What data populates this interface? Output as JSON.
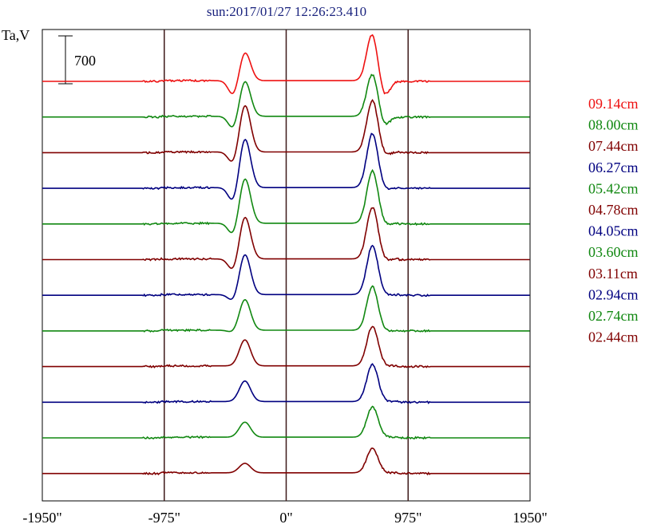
{
  "chart_data": {
    "type": "line",
    "title": "sun:2017/01/27 12:26:23.410",
    "ylabel": "Ta,V",
    "xlabel": "",
    "xlim": [
      -1950,
      1950
    ],
    "x_ticks": [
      -1950,
      -975,
      0,
      975,
      1950
    ],
    "x_tick_labels": [
      "-1950\"",
      "-975\"",
      "0\"",
      "975\"",
      "1950\""
    ],
    "vertical_lines": [
      -975,
      0,
      975
    ],
    "scale_bar_label": "700",
    "scale_bar_value": 700,
    "grid": false,
    "legend_position": "right",
    "series": [
      {
        "name": "09.14cm",
        "color": "#ee1111",
        "peak1": 420,
        "dip1": -230,
        "peak2": 700,
        "dip2": -250
      },
      {
        "name": "08.00cm",
        "color": "#118811",
        "peak1": 520,
        "dip1": -200,
        "peak2": 630,
        "dip2": -150
      },
      {
        "name": "07.44cm",
        "color": "#800000",
        "peak1": 690,
        "dip1": -190,
        "peak2": 760,
        "dip2": -60
      },
      {
        "name": "06.27cm",
        "color": "#000080",
        "peak1": 720,
        "dip1": -230,
        "peak2": 800,
        "dip2": -40
      },
      {
        "name": "05.42cm",
        "color": "#118811",
        "peak1": 660,
        "dip1": -190,
        "peak2": 770,
        "dip2": -30
      },
      {
        "name": "04.78cm",
        "color": "#800000",
        "peak1": 620,
        "dip1": -190,
        "peak2": 760,
        "dip2": -30
      },
      {
        "name": "04.05cm",
        "color": "#000080",
        "peak1": 590,
        "dip1": -110,
        "peak2": 720,
        "dip2": -20
      },
      {
        "name": "03.60cm",
        "color": "#118811",
        "peak1": 450,
        "dip1": -40,
        "peak2": 640,
        "dip2": -20
      },
      {
        "name": "03.11cm",
        "color": "#800000",
        "peak1": 380,
        "dip1": 0,
        "peak2": 580,
        "dip2": 0
      },
      {
        "name": "02.94cm",
        "color": "#000080",
        "peak1": 300,
        "dip1": 0,
        "peak2": 540,
        "dip2": 0
      },
      {
        "name": "02.74cm",
        "color": "#118811",
        "peak1": 220,
        "dip1": 0,
        "peak2": 440,
        "dip2": 0
      },
      {
        "name": "02.44cm",
        "color": "#800000",
        "peak1": 140,
        "dip1": 0,
        "peak2": 360,
        "dip2": 0
      }
    ],
    "peak_positions": [
      -330,
      690
    ]
  }
}
